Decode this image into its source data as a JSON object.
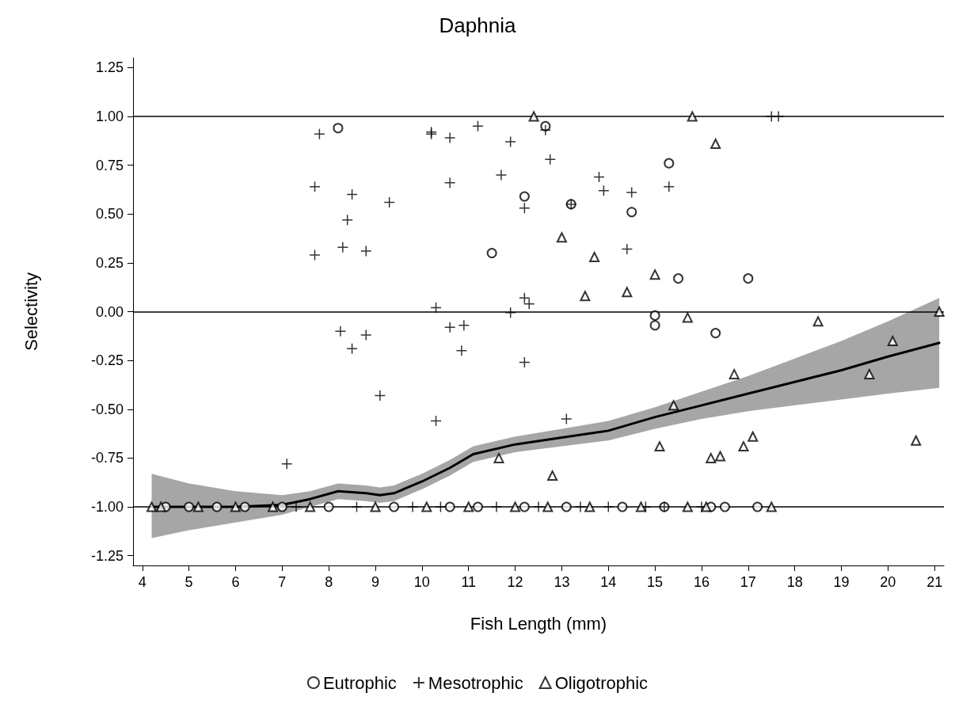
{
  "chart_data": {
    "type": "scatter",
    "title": "Daphnia",
    "xlabel": "Fish Length (mm)",
    "ylabel": "Selectivity",
    "xlim": [
      3.8,
      21.2
    ],
    "xticks": [
      4,
      5,
      6,
      7,
      8,
      9,
      10,
      11,
      12,
      13,
      14,
      15,
      16,
      17,
      18,
      19,
      20,
      21
    ],
    "ylim": [
      -1.3,
      1.3
    ],
    "yticks": [
      {
        "value": -1.25,
        "label": "-1.25"
      },
      {
        "value": -1,
        "label": "-1.00"
      },
      {
        "value": -0.75,
        "label": "-0.75"
      },
      {
        "value": -0.5,
        "label": "-0.50"
      },
      {
        "value": -0.25,
        "label": "-0.25"
      },
      {
        "value": 0,
        "label": "0.00"
      },
      {
        "value": 0.25,
        "label": "0.25"
      },
      {
        "value": 0.5,
        "label": "0.50"
      },
      {
        "value": 0.75,
        "label": "0.75"
      },
      {
        "value": 1,
        "label": "1.00"
      },
      {
        "value": 1.25,
        "label": "1.25"
      }
    ],
    "grid": false,
    "legend": "bottom",
    "ref_lines": [
      {
        "axis": "y",
        "value": 1,
        "color": "#000000"
      },
      {
        "axis": "y",
        "value": 0,
        "color": "#000000"
      },
      {
        "axis": "y",
        "value": -1,
        "color": "#000000"
      }
    ],
    "series": [
      {
        "name": "Eutrophic",
        "color": "#000000",
        "marker": "circle",
        "x": [
          8.2,
          12.65,
          12.2,
          13.2,
          11.5,
          14.5,
          15.3,
          15.5,
          17.0,
          15.0,
          15.0,
          16.3,
          4.5,
          5.0,
          5.6,
          6.2,
          7.0,
          8.0,
          9.4,
          10.6,
          11.2,
          12.2,
          13.1,
          14.3,
          15.2,
          16.2,
          16.5,
          17.2
        ],
        "values": [
          0.94,
          0.95,
          0.59,
          0.55,
          0.3,
          0.51,
          0.76,
          0.17,
          0.17,
          -0.02,
          -0.07,
          -0.11,
          -1,
          -1,
          -1,
          -1,
          -1,
          -1,
          -1,
          -1,
          -1,
          -1,
          -1,
          -1,
          -1,
          -1,
          -1,
          -1
        ]
      },
      {
        "name": "Mesotrophic",
        "color": "#000000",
        "marker": "cross",
        "x": [
          7.8,
          7.7,
          7.7,
          8.3,
          8.4,
          8.5,
          8.8,
          9.3,
          10.2,
          10.2,
          10.6,
          11.2,
          11.9,
          12.65,
          12.75,
          10.6,
          11.7,
          12.2,
          13.2,
          13.8,
          13.9,
          14.5,
          15.3,
          14.4,
          10.3,
          11.9,
          12.2,
          12.3,
          8.25,
          8.5,
          8.8,
          10.6,
          10.9,
          10.85,
          12.2,
          9.1,
          10.3,
          13.1,
          7.1,
          17.5,
          17.65,
          7.3,
          8.6,
          9.8,
          10.4,
          11.6,
          12.5,
          13.4,
          14.0,
          14.8,
          15.2,
          16.0
        ],
        "values": [
          0.91,
          0.64,
          0.29,
          0.33,
          0.47,
          0.6,
          0.31,
          0.56,
          0.92,
          0.91,
          0.89,
          0.95,
          0.87,
          0.93,
          0.78,
          0.66,
          0.7,
          0.53,
          0.55,
          0.69,
          0.62,
          0.61,
          0.64,
          0.32,
          0.02,
          -0.005,
          0.07,
          0.04,
          -0.1,
          -0.19,
          -0.12,
          -0.08,
          -0.07,
          -0.2,
          -0.26,
          -0.43,
          -0.56,
          -0.55,
          -0.78,
          1,
          1,
          -1,
          -1,
          -1,
          -1,
          -1,
          -1,
          -1,
          -1,
          -1,
          -1,
          -1
        ]
      },
      {
        "name": "Oligotrophic",
        "color": "#000000",
        "marker": "triangle",
        "x": [
          12.4,
          15.8,
          16.3,
          13.0,
          13.7,
          13.5,
          14.4,
          15.0,
          15.7,
          18.5,
          21.1,
          20.1,
          16.7,
          19.6,
          15.4,
          11.65,
          12.8,
          15.1,
          16.2,
          16.4,
          16.9,
          17.1,
          20.6,
          4.2,
          4.4,
          5.2,
          6.0,
          6.8,
          7.6,
          9.0,
          10.1,
          11.0,
          12.0,
          12.7,
          13.6,
          14.7,
          15.7,
          16.1,
          17.5
        ],
        "values": [
          1,
          1,
          0.86,
          0.38,
          0.28,
          0.08,
          0.1,
          0.19,
          -0.03,
          -0.05,
          0,
          -0.15,
          -0.32,
          -0.32,
          -0.48,
          -0.75,
          -0.84,
          -0.69,
          -0.75,
          -0.74,
          -0.69,
          -0.64,
          -0.66,
          -1,
          -1,
          -1,
          -1,
          -1,
          -1,
          -1,
          -1,
          -1,
          -1,
          -1,
          -1,
          -1,
          -1,
          -1,
          -1
        ]
      },
      {
        "type": "line",
        "color": "#000000",
        "marker": "none",
        "x": [
          4.2,
          5,
          6,
          7,
          7.6,
          8.2,
          8.8,
          9.1,
          9.4,
          10,
          10.6,
          11.1,
          12,
          13,
          14,
          15,
          16,
          17,
          18,
          19,
          20,
          21.1
        ],
        "values": [
          -1,
          -1,
          -1,
          -0.99,
          -0.96,
          -0.92,
          -0.93,
          -0.94,
          -0.93,
          -0.87,
          -0.8,
          -0.73,
          -0.68,
          -0.645,
          -0.61,
          -0.54,
          -0.48,
          -0.42,
          -0.36,
          -0.3,
          -0.23,
          -0.16
        ],
        "upper": [
          -0.83,
          -0.88,
          -0.92,
          -0.94,
          -0.92,
          -0.88,
          -0.89,
          -0.9,
          -0.89,
          -0.83,
          -0.76,
          -0.69,
          -0.64,
          -0.6,
          -0.56,
          -0.49,
          -0.41,
          -0.33,
          -0.24,
          -0.15,
          -0.05,
          0.07
        ],
        "lower": [
          -1.16,
          -1.12,
          -1.08,
          -1.04,
          -1,
          -0.96,
          -0.97,
          -0.98,
          -0.97,
          -0.91,
          -0.84,
          -0.77,
          -0.72,
          -0.69,
          -0.66,
          -0.6,
          -0.55,
          -0.51,
          -0.48,
          -0.45,
          -0.42,
          -0.39
        ]
      }
    ]
  }
}
